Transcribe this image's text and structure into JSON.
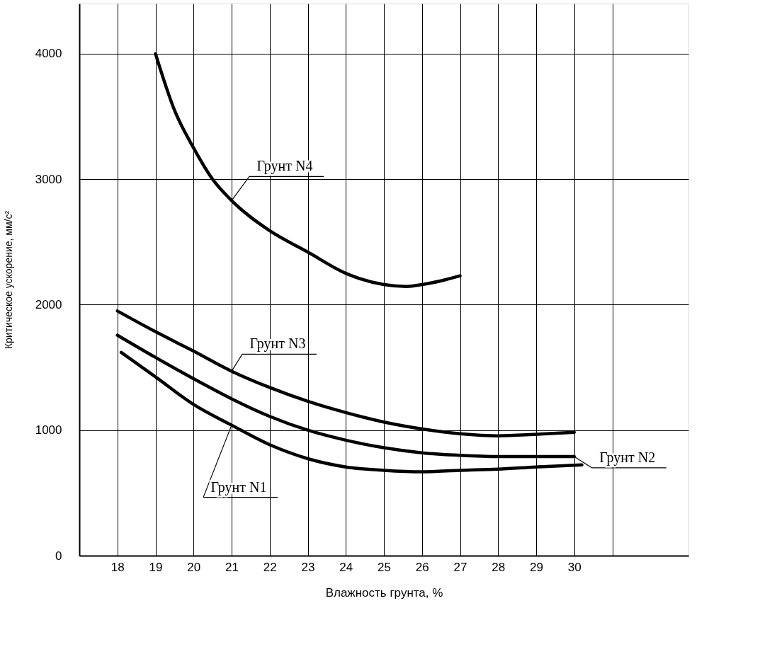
{
  "chart_data": {
    "type": "line",
    "xlabel": "Влажность грунта, %",
    "ylabel": "Критическое ускорение, мм/с²",
    "xlim": [
      17,
      33
    ],
    "xticks": [
      18,
      19,
      20,
      21,
      22,
      23,
      24,
      25,
      26,
      27,
      28,
      29,
      30,
      {
        "value": 31,
        "label": null
      }
    ],
    "ylim": [
      0,
      4400
    ],
    "yticks": [
      0,
      1000,
      2000,
      3000,
      4000
    ],
    "grid": true,
    "marker": "none",
    "line_style": "solid",
    "series": [
      {
        "name": "Грунт N4",
        "color": "#000000",
        "x": [
          19,
          19.5,
          20,
          20.5,
          21,
          22,
          23,
          24,
          25,
          25.6,
          26,
          26.5,
          27
        ],
        "values": [
          4000,
          3550,
          3250,
          3000,
          2830,
          2590,
          2420,
          2250,
          2160,
          2145,
          2160,
          2190,
          2230
        ]
      },
      {
        "name": "Грунт N3",
        "color": "#000000",
        "x": [
          18,
          19,
          20,
          21,
          22,
          23,
          24,
          25,
          26,
          27,
          28,
          29,
          30
        ],
        "values": [
          1950,
          1785,
          1630,
          1470,
          1340,
          1230,
          1140,
          1065,
          1010,
          972,
          955,
          967,
          983
        ]
      },
      {
        "name": "Грунт N2",
        "color": "#000000",
        "x": [
          18,
          19,
          20,
          21,
          22,
          23,
          24,
          25,
          26,
          27,
          28,
          29,
          30
        ],
        "values": [
          1757,
          1580,
          1410,
          1250,
          1110,
          1000,
          920,
          860,
          820,
          800,
          790,
          790,
          790
        ]
      },
      {
        "name": "Грунт N1",
        "color": "#000000",
        "x": [
          18.1,
          19,
          20,
          21,
          22,
          23,
          24,
          25,
          26,
          27,
          28,
          29,
          30.2
        ],
        "values": [
          1620,
          1425,
          1205,
          1040,
          884,
          773,
          707,
          680,
          668,
          680,
          690,
          707,
          724
        ]
      }
    ]
  }
}
